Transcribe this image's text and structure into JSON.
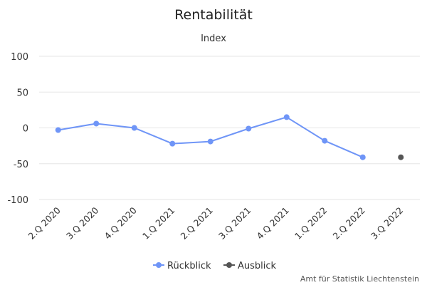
{
  "chart_data": {
    "type": "line",
    "title": "Rentabilität",
    "subtitle": "Index",
    "categories": [
      "2.Q 2020",
      "3.Q 2020",
      "4.Q 2020",
      "1.Q 2021",
      "2.Q 2021",
      "3.Q 2021",
      "4.Q 2021",
      "1.Q 2022",
      "2.Q 2022",
      "3.Q 2022"
    ],
    "ylim": [
      -100,
      100
    ],
    "yticks": [
      100,
      50,
      0,
      -50,
      -100
    ],
    "grid": true,
    "legend_position": "bottom",
    "series": [
      {
        "name": "Rückblick",
        "color": "#6f95f7",
        "line": true,
        "values": [
          -3,
          6,
          0,
          -22,
          -19,
          -1,
          15,
          -18,
          -41,
          null
        ]
      },
      {
        "name": "Ausblick",
        "color": "#555555",
        "line": false,
        "values": [
          null,
          null,
          null,
          null,
          null,
          null,
          null,
          null,
          null,
          -41
        ]
      }
    ],
    "credit": "Amt für Statistik Liechtenstein"
  }
}
